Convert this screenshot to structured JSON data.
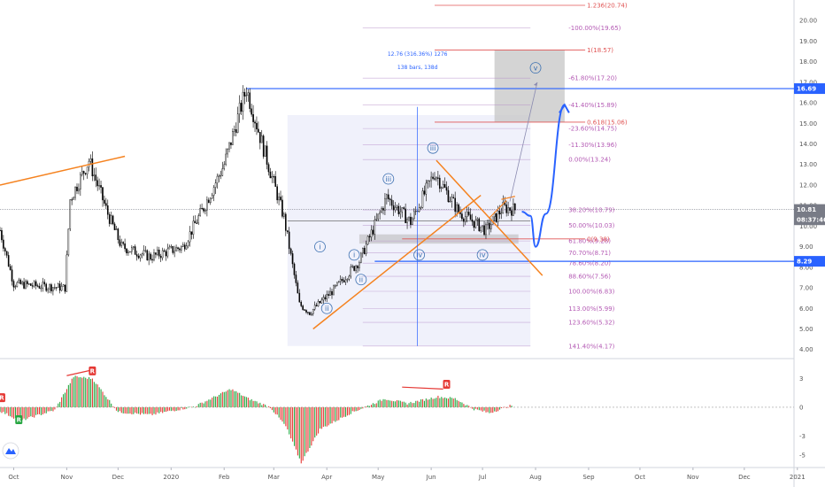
{
  "chart_data": [
    {
      "type": "candlestick",
      "title": "",
      "x_axis": {
        "ticks": [
          "Oct",
          "Nov",
          "Dec",
          "2020",
          "Feb",
          "Mar",
          "Apr",
          "May",
          "Jun",
          "Jul",
          "Aug",
          "Sep",
          "Oct",
          "Nov",
          "Dec",
          "2021"
        ]
      },
      "y_axis": {
        "side": "right",
        "ticks": [
          "4.00",
          "5.00",
          "6.00",
          "7.00",
          "8.00",
          "9.00",
          "10.00",
          "11.00",
          "12.00",
          "13.00",
          "14.00",
          "15.00",
          "16.00",
          "17.00",
          "18.00",
          "19.00",
          "20.00"
        ],
        "ylim": [
          3.6,
          21.0
        ]
      },
      "price_markers": [
        {
          "value": 16.69,
          "label": "16.69",
          "color": "#2962ff"
        },
        {
          "value": 10.81,
          "label": "10.81",
          "color": "#787b86"
        },
        {
          "value": 10.31,
          "label": "08:37:46",
          "color": "#787b86"
        },
        {
          "value": 8.29,
          "label": "8.29",
          "color": "#2962ff"
        }
      ],
      "fib_retracement": [
        {
          "label": "-100.00%(19.65)",
          "value": 19.65
        },
        {
          "label": "-61.80%(17.20)",
          "value": 17.2
        },
        {
          "label": "-41.40%(15.89)",
          "value": 15.89
        },
        {
          "label": "-23.60%(14.75)",
          "value": 14.75
        },
        {
          "label": "-11.30%(13.96)",
          "value": 13.96
        },
        {
          "label": "0.00%(13.24)",
          "value": 13.24
        },
        {
          "label": "38.20%(10.79)",
          "value": 10.79
        },
        {
          "label": "50.00%(10.03)",
          "value": 10.03
        },
        {
          "label": "61.80%(9.28)",
          "value": 9.28
        },
        {
          "label": "70.70%(8.71)",
          "value": 8.71
        },
        {
          "label": "78.60%(8.20)",
          "value": 8.2
        },
        {
          "label": "88.60%(7.56)",
          "value": 7.56
        },
        {
          "label": "100.00%(6.83)",
          "value": 6.83
        },
        {
          "label": "113.00%(5.99)",
          "value": 5.99
        },
        {
          "label": "123.60%(5.32)",
          "value": 5.32
        },
        {
          "label": "141.40%(4.17)",
          "value": 4.17
        }
      ],
      "fib_extension": [
        {
          "label": "1.236(20.74)",
          "value": 20.74
        },
        {
          "label": "1(18.57)",
          "value": 18.57
        },
        {
          "label": "0.618(15.06)",
          "value": 15.06
        },
        {
          "label": "0(9.38)",
          "value": 9.38
        }
      ],
      "measure": {
        "line1": "12.76 (316.36%) 1276",
        "line2": "138 bars, 138d"
      },
      "wave_labels": [
        {
          "text": "i",
          "date": "2020-03-28",
          "value": 9.0
        },
        {
          "text": "ii",
          "date": "2020-04-01",
          "value": 6.0
        },
        {
          "text": "i",
          "date": "2020-04-17",
          "value": 8.6
        },
        {
          "text": "ii",
          "date": "2020-04-21",
          "value": 7.4
        },
        {
          "text": "iii",
          "date": "2020-05-07",
          "value": 12.3
        },
        {
          "text": "iv",
          "date": "2020-05-25",
          "value": 8.6
        },
        {
          "text": "iii",
          "date": "2020-06-02",
          "value": 13.8
        },
        {
          "text": "iv",
          "date": "2020-07-01",
          "value": 8.6
        },
        {
          "text": "v",
          "date": "2020-08-01",
          "value": 17.7
        }
      ],
      "series": [
        {
          "date": "2019-09-23",
          "value": 9.8
        },
        {
          "date": "2019-10-01",
          "value": 7.2
        },
        {
          "date": "2019-10-15",
          "value": 7.1
        },
        {
          "date": "2019-10-31",
          "value": 7.0
        },
        {
          "date": "2019-11-03",
          "value": 11.3
        },
        {
          "date": "2019-11-14",
          "value": 13.2
        },
        {
          "date": "2019-11-25",
          "value": 10.6
        },
        {
          "date": "2019-12-03",
          "value": 9.0
        },
        {
          "date": "2019-12-20",
          "value": 8.5
        },
        {
          "date": "2020-01-08",
          "value": 9.0
        },
        {
          "date": "2020-01-20",
          "value": 10.9
        },
        {
          "date": "2020-02-01",
          "value": 13.0
        },
        {
          "date": "2020-02-14",
          "value": 16.69
        },
        {
          "date": "2020-02-25",
          "value": 13.5
        },
        {
          "date": "2020-03-07",
          "value": 10.4
        },
        {
          "date": "2020-03-16",
          "value": 6.2
        },
        {
          "date": "2020-03-22",
          "value": 5.8
        },
        {
          "date": "2020-04-05",
          "value": 6.9
        },
        {
          "date": "2020-04-20",
          "value": 8.3
        },
        {
          "date": "2020-05-06",
          "value": 11.4
        },
        {
          "date": "2020-05-20",
          "value": 10.2
        },
        {
          "date": "2020-06-03",
          "value": 12.6
        },
        {
          "date": "2020-06-17",
          "value": 10.7
        },
        {
          "date": "2020-07-03",
          "value": 9.8
        },
        {
          "date": "2020-07-13",
          "value": 10.9
        },
        {
          "date": "2020-07-20",
          "value": 10.81
        }
      ],
      "projection": [
        {
          "date": "2020-07-24",
          "value": 10.7
        },
        {
          "date": "2020-07-29",
          "value": 10.5
        },
        {
          "date": "2020-08-01",
          "value": 9.0
        },
        {
          "date": "2020-08-07",
          "value": 10.6
        },
        {
          "date": "2020-08-18",
          "value": 15.9
        }
      ]
    },
    {
      "type": "histogram",
      "y_axis": {
        "side": "right",
        "ticks": [
          "3",
          "0",
          "-3",
          "-5"
        ],
        "ylim": [
          -6.2,
          4.8
        ]
      },
      "colors": {
        "positive": "#26a641",
        "negative": "#e53935"
      },
      "markers": [
        {
          "text": "R",
          "date": "2019-09-24",
          "value": 1.0
        },
        {
          "text": "R",
          "date": "2019-10-04",
          "value": -1.3
        },
        {
          "text": "R",
          "date": "2019-11-16",
          "value": 3.8
        },
        {
          "text": "R",
          "date": "2020-06-10",
          "value": 2.4
        }
      ],
      "series": [
        {
          "date": "2019-09-23",
          "value": -0.4
        },
        {
          "date": "2019-10-05",
          "value": -1.4
        },
        {
          "date": "2019-10-25",
          "value": -0.3
        },
        {
          "date": "2019-11-05",
          "value": 3.2
        },
        {
          "date": "2019-11-16",
          "value": 3.0
        },
        {
          "date": "2019-12-01",
          "value": -0.5
        },
        {
          "date": "2019-12-20",
          "value": -0.8
        },
        {
          "date": "2020-01-15",
          "value": 0.1
        },
        {
          "date": "2020-02-05",
          "value": 1.9
        },
        {
          "date": "2020-02-15",
          "value": 0.9
        },
        {
          "date": "2020-02-28",
          "value": 0.0
        },
        {
          "date": "2020-03-08",
          "value": -2.0
        },
        {
          "date": "2020-03-17",
          "value": -5.8
        },
        {
          "date": "2020-03-28",
          "value": -2.3
        },
        {
          "date": "2020-04-15",
          "value": -0.6
        },
        {
          "date": "2020-05-05",
          "value": 0.9
        },
        {
          "date": "2020-05-18",
          "value": 0.4
        },
        {
          "date": "2020-06-05",
          "value": 1.1
        },
        {
          "date": "2020-06-15",
          "value": 0.9
        },
        {
          "date": "2020-06-26",
          "value": -0.2
        },
        {
          "date": "2020-07-05",
          "value": -0.6
        },
        {
          "date": "2020-07-18",
          "value": 0.2
        }
      ]
    }
  ]
}
